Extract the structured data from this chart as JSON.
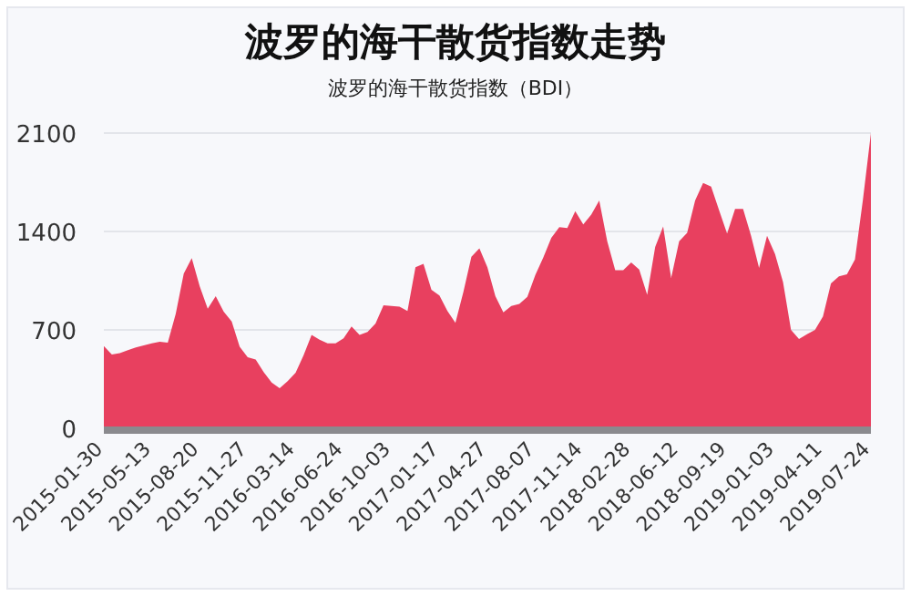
{
  "chart_data": {
    "type": "area",
    "title": "波罗的海干散货指数走势",
    "subtitle": "波罗的海干散货指数（BDI）",
    "categories": [
      "2015-01-30",
      null,
      null,
      null,
      null,
      null,
      "2015-05-13",
      null,
      null,
      null,
      null,
      null,
      "2015-08-20",
      null,
      null,
      null,
      null,
      null,
      "2015-11-27",
      null,
      null,
      null,
      null,
      null,
      "2016-03-14",
      null,
      null,
      null,
      null,
      null,
      "2016-06-24",
      null,
      null,
      null,
      null,
      null,
      "2016-10-03",
      null,
      null,
      null,
      null,
      null,
      "2017-01-17",
      null,
      null,
      null,
      null,
      null,
      "2017-04-27",
      null,
      null,
      null,
      null,
      null,
      "2017-08-07",
      null,
      null,
      null,
      null,
      null,
      "2017-11-14",
      null,
      null,
      null,
      null,
      null,
      "2018-02-28",
      null,
      null,
      null,
      null,
      null,
      "2018-06-12",
      null,
      null,
      null,
      null,
      null,
      "2018-09-19",
      null,
      null,
      null,
      null,
      null,
      "2019-01-03",
      null,
      null,
      null,
      null,
      null,
      "2019-04-11",
      null,
      null,
      null,
      null,
      null,
      "2019-07-24"
    ],
    "values": [
      585,
      525,
      535,
      555,
      575,
      590,
      605,
      615,
      610,
      815,
      1100,
      1210,
      1010,
      850,
      940,
      830,
      760,
      580,
      505,
      490,
      400,
      325,
      285,
      335,
      395,
      520,
      665,
      630,
      605,
      605,
      640,
      725,
      665,
      685,
      745,
      875,
      870,
      865,
      835,
      1145,
      1170,
      985,
      945,
      835,
      750,
      970,
      1220,
      1280,
      1145,
      940,
      825,
      870,
      885,
      935,
      1090,
      1215,
      1355,
      1430,
      1425,
      1545,
      1450,
      1520,
      1620,
      1330,
      1125,
      1125,
      1180,
      1130,
      950,
      1290,
      1435,
      1070,
      1330,
      1390,
      1620,
      1745,
      1720,
      1550,
      1385,
      1560,
      1560,
      1370,
      1140,
      1370,
      1240,
      1040,
      700,
      635,
      670,
      700,
      795,
      1030,
      1080,
      1095,
      1200,
      1625,
      2100
    ],
    "color": "#e8405f",
    "ylim": [
      0,
      2100
    ],
    "yticks": [
      0,
      700,
      1400,
      2100
    ],
    "grid": "y"
  }
}
